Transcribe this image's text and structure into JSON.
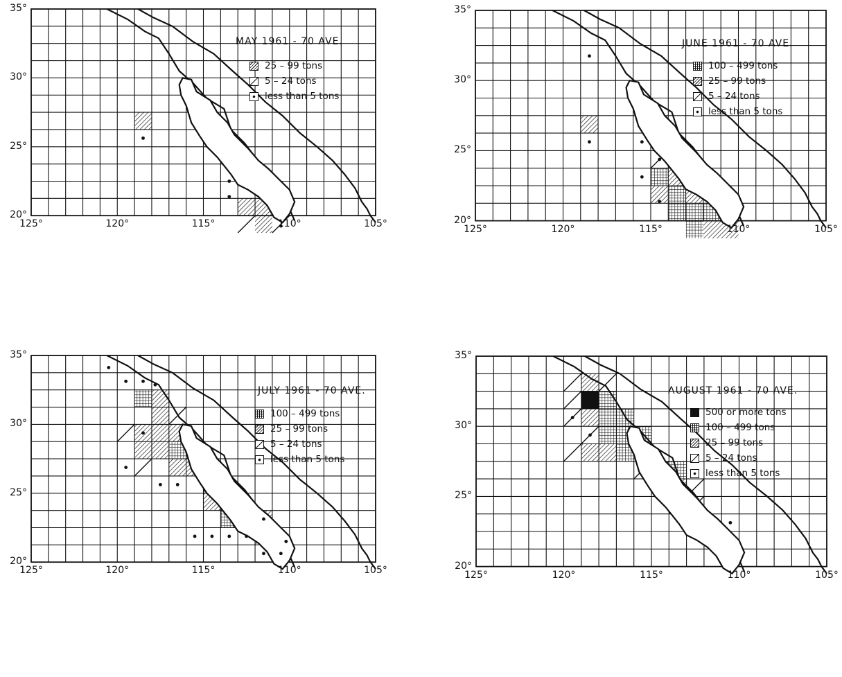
{
  "panels": [
    {
      "title": "MAY   1961 - 70 AVE.",
      "legend": [
        {
          "pattern": "dense-hatch",
          "label": "25 – 99 tons"
        },
        {
          "pattern": "sparse-hatch",
          "label": "5 – 24 tons"
        },
        {
          "pattern": "dot",
          "label": "less than 5 tons"
        }
      ],
      "cells": [
        {
          "col": 6,
          "row": 6,
          "p": "dense"
        },
        {
          "col": 12,
          "row": 11,
          "p": "dense"
        },
        {
          "col": 13,
          "row": 11,
          "p": "dense"
        },
        {
          "col": 12,
          "row": 12,
          "p": "sparse"
        },
        {
          "col": 13,
          "row": 12,
          "p": "dense"
        },
        {
          "col": 14,
          "row": 12,
          "p": "sparse"
        }
      ],
      "dots": [
        [
          6.5,
          7.5
        ],
        [
          11.5,
          10.0
        ],
        [
          11.5,
          10.9
        ],
        [
          14.5,
          12.6
        ]
      ]
    },
    {
      "title": "JUNE   1961 - 70 AVE.",
      "legend": [
        {
          "pattern": "crosshatch",
          "label": "100 – 499 tons"
        },
        {
          "pattern": "dense-hatch",
          "label": "25 – 99 tons"
        },
        {
          "pattern": "sparse-hatch",
          "label": "5 – 24 tons"
        },
        {
          "pattern": "dot",
          "label": "less than 5 tons"
        }
      ],
      "cells": [
        {
          "col": 6,
          "row": 6,
          "p": "dense"
        },
        {
          "col": 10,
          "row": 8,
          "p": "sparse"
        },
        {
          "col": 10,
          "row": 9,
          "p": "cross"
        },
        {
          "col": 10,
          "row": 10,
          "p": "dense"
        },
        {
          "col": 11,
          "row": 9,
          "p": "dense"
        },
        {
          "col": 11,
          "row": 10,
          "p": "cross"
        },
        {
          "col": 11,
          "row": 11,
          "p": "cross"
        },
        {
          "col": 12,
          "row": 10,
          "p": "dense"
        },
        {
          "col": 12,
          "row": 11,
          "p": "cross"
        },
        {
          "col": 12,
          "row": 12,
          "p": "cross"
        },
        {
          "col": 13,
          "row": 11,
          "p": "cross"
        },
        {
          "col": 13,
          "row": 12,
          "p": "dense"
        },
        {
          "col": 14,
          "row": 12,
          "p": "dense"
        }
      ],
      "dots": [
        [
          6.5,
          2.6
        ],
        [
          6.5,
          7.5
        ],
        [
          9.5,
          7.5
        ],
        [
          9.5,
          9.5
        ],
        [
          10.5,
          8.5
        ],
        [
          10.5,
          10.9
        ]
      ]
    },
    {
      "title": "JULY   1961 - 70 AVE.",
      "legend": [
        {
          "pattern": "crosshatch",
          "label": "100 – 499 tons"
        },
        {
          "pattern": "dense-hatch",
          "label": "25 – 99 tons"
        },
        {
          "pattern": "sparse-hatch",
          "label": "5 – 24 tons"
        },
        {
          "pattern": "dot",
          "label": "less than 5 tons"
        }
      ],
      "cells": [
        {
          "col": 6,
          "row": 2,
          "p": "cross"
        },
        {
          "col": 7,
          "row": 2,
          "p": "dense"
        },
        {
          "col": 7,
          "row": 3,
          "p": "dense"
        },
        {
          "col": 8,
          "row": 3,
          "p": "sparse"
        },
        {
          "col": 5,
          "row": 4,
          "p": "sparse"
        },
        {
          "col": 6,
          "row": 4,
          "p": "dense"
        },
        {
          "col": 7,
          "row": 4,
          "p": "dense"
        },
        {
          "col": 8,
          "row": 4,
          "p": "dense"
        },
        {
          "col": 6,
          "row": 5,
          "p": "dense"
        },
        {
          "col": 7,
          "row": 5,
          "p": "dense"
        },
        {
          "col": 8,
          "row": 5,
          "p": "cross"
        },
        {
          "col": 9,
          "row": 5,
          "p": "dense"
        },
        {
          "col": 6,
          "row": 6,
          "p": "sparse"
        },
        {
          "col": 8,
          "row": 6,
          "p": "dense"
        },
        {
          "col": 9,
          "row": 6,
          "p": "dense"
        },
        {
          "col": 10,
          "row": 7,
          "p": "cross"
        },
        {
          "col": 10,
          "row": 8,
          "p": "dense"
        },
        {
          "col": 11,
          "row": 8,
          "p": "cross"
        },
        {
          "col": 11,
          "row": 9,
          "p": "cross"
        },
        {
          "col": 12,
          "row": 9,
          "p": "cross"
        },
        {
          "col": 13,
          "row": 9,
          "p": "dense"
        },
        {
          "col": 13,
          "row": 10,
          "p": "dense"
        }
      ],
      "dots": [
        [
          4.5,
          0.7
        ],
        [
          5.5,
          1.5
        ],
        [
          6.5,
          1.5
        ],
        [
          7.2,
          1.7
        ],
        [
          6.5,
          4.5
        ],
        [
          5.5,
          6.5
        ],
        [
          7.5,
          7.5
        ],
        [
          8.5,
          7.5
        ],
        [
          9.5,
          10.5
        ],
        [
          10.5,
          10.5
        ],
        [
          11.5,
          10.5
        ],
        [
          12.5,
          10.5
        ],
        [
          13.5,
          9.5
        ],
        [
          13.5,
          11.5
        ],
        [
          14.5,
          11.5
        ],
        [
          14.8,
          10.8
        ]
      ]
    },
    {
      "title": "AUGUST  1961 - 70 AVE.",
      "legend": [
        {
          "pattern": "solid",
          "label": "500 or more tons"
        },
        {
          "pattern": "crosshatch",
          "label": "100 – 499 tons"
        },
        {
          "pattern": "dense-hatch",
          "label": "25 – 99 tons"
        },
        {
          "pattern": "sparse-hatch",
          "label": "5 – 24 tons"
        },
        {
          "pattern": "dot",
          "label": "less than 5 tons"
        }
      ],
      "cells": [
        {
          "col": 5,
          "row": 1,
          "p": "sparse"
        },
        {
          "col": 6,
          "row": 1,
          "p": "dense"
        },
        {
          "col": 7,
          "row": 1,
          "p": "sparse"
        },
        {
          "col": 5,
          "row": 2,
          "p": "sparse"
        },
        {
          "col": 6,
          "row": 2,
          "p": "solid"
        },
        {
          "col": 7,
          "row": 2,
          "p": "cross"
        },
        {
          "col": 5,
          "row": 3,
          "p": "sparse"
        },
        {
          "col": 6,
          "row": 3,
          "p": "dense"
        },
        {
          "col": 7,
          "row": 3,
          "p": "cross"
        },
        {
          "col": 8,
          "row": 3,
          "p": "cross"
        },
        {
          "col": 6,
          "row": 4,
          "p": "sparse"
        },
        {
          "col": 7,
          "row": 4,
          "p": "cross"
        },
        {
          "col": 8,
          "row": 4,
          "p": "cross"
        },
        {
          "col": 9,
          "row": 4,
          "p": "cross"
        },
        {
          "col": 5,
          "row": 5,
          "p": "sparse"
        },
        {
          "col": 6,
          "row": 5,
          "p": "dense"
        },
        {
          "col": 7,
          "row": 5,
          "p": "dense"
        },
        {
          "col": 8,
          "row": 5,
          "p": "cross"
        },
        {
          "col": 9,
          "row": 6,
          "p": "sparse"
        },
        {
          "col": 10,
          "row": 6,
          "p": "sparse"
        },
        {
          "col": 11,
          "row": 6,
          "p": "cross"
        },
        {
          "col": 11,
          "row": 7,
          "p": "dense"
        },
        {
          "col": 12,
          "row": 7,
          "p": "sparse"
        },
        {
          "col": 11,
          "row": 8,
          "p": "sparse"
        },
        {
          "col": 12,
          "row": 8,
          "p": "sparse"
        }
      ],
      "dots": [
        [
          5.5,
          3.5
        ],
        [
          6.5,
          4.5
        ],
        [
          14.5,
          9.5
        ]
      ]
    }
  ],
  "axis_labels": {
    "lat": [
      "35°",
      "30°",
      "25°",
      "20°"
    ],
    "lon": [
      "125°",
      "120°",
      "115°",
      "110°",
      "105°"
    ]
  }
}
